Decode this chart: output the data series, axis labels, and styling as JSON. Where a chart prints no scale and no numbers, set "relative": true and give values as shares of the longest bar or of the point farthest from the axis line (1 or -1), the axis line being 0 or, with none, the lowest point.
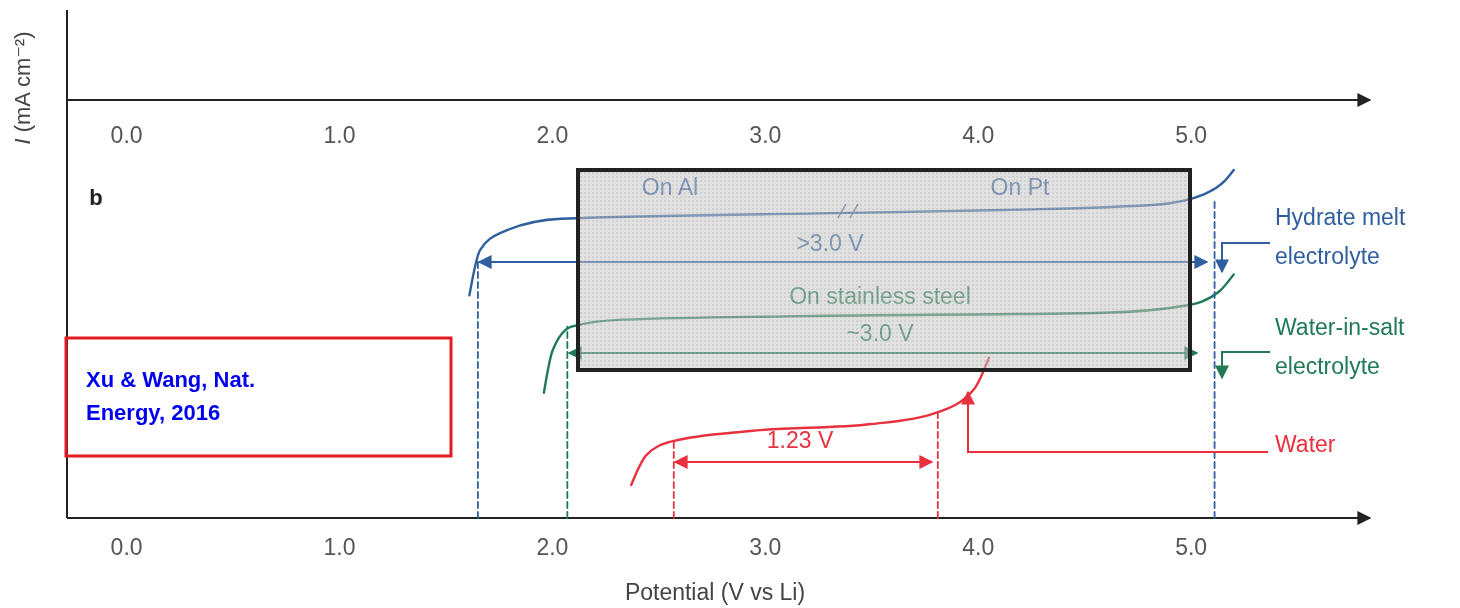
{
  "chart_data": {
    "type": "line",
    "relative": true,
    "ylabel": "I (mA cm⁻²)",
    "xlabel": "Potential (V vs Li)",
    "xlim": [
      -0.28,
      5.84
    ],
    "xticks": [
      {
        "value": 0,
        "label": "0.0"
      },
      {
        "value": 1,
        "label": "1.0"
      },
      {
        "value": 2,
        "label": "2.0"
      },
      {
        "value": 3,
        "label": "3.0"
      },
      {
        "value": 4,
        "label": "4.0"
      },
      {
        "value": 5,
        "label": "5.0"
      }
    ],
    "x2lim": [
      -0.28,
      5.84
    ],
    "x2ticks": [
      {
        "value": 0,
        "label": "0.0"
      },
      {
        "value": 1,
        "label": "1.0"
      },
      {
        "value": 2,
        "label": "2.0"
      },
      {
        "value": 3,
        "label": "3.0"
      },
      {
        "value": 4,
        "label": "4.0"
      },
      {
        "value": 5,
        "label": "5.0"
      }
    ],
    "series": [
      {
        "name": "Hydrate melt electrolyte",
        "color": "#2f5f9e",
        "x": [
          1.61,
          1.66,
          1.76,
          2.04,
          3.32,
          4.12,
          4.83,
          5.06,
          5.16,
          5.2
        ],
        "values": [
          0.64,
          0.77,
          0.82,
          0.86,
          0.876,
          0.885,
          0.9,
          0.93,
          0.97,
          1.0
        ]
      },
      {
        "name": "Water-in-salt electrolyte",
        "color": "#1f7a55",
        "x": [
          1.96,
          2.0,
          2.09,
          2.33,
          3.17,
          4.59,
          4.97,
          5.13,
          5.2
        ],
        "values": [
          0.36,
          0.48,
          0.55,
          0.57,
          0.58,
          0.59,
          0.61,
          0.65,
          0.7
        ]
      },
      {
        "name": "Water",
        "color": "#e8303f",
        "x": [
          2.37,
          2.44,
          2.56,
          2.93,
          3.5,
          3.79,
          3.98,
          4.05
        ],
        "values": [
          0.095,
          0.18,
          0.22,
          0.25,
          0.27,
          0.3,
          0.37,
          0.46
        ]
      },
      {
        "color": "#2f5f9e",
        "line_style": "dashed",
        "x": [
          1.65,
          1.65
        ],
        "values": [
          0,
          0.74
        ]
      },
      {
        "color": "#2f5f9e",
        "line_style": "dashed",
        "x": [
          5.11,
          5.11
        ],
        "values": [
          0,
          0.91
        ]
      },
      {
        "color": "#1f7a55",
        "line_style": "dashed",
        "x": [
          2.07,
          2.07
        ],
        "values": [
          0,
          0.55
        ]
      },
      {
        "color": "#e8303f",
        "line_style": "dashed",
        "x": [
          2.57,
          2.57
        ],
        "values": [
          0,
          0.22
        ]
      },
      {
        "color": "#e8303f",
        "line_style": "dashed",
        "x": [
          3.81,
          3.81
        ],
        "values": [
          0,
          0.3
        ]
      }
    ],
    "annotations": [
      "b",
      "On Al",
      "On Pt",
      ">3.0 V",
      "On stainless steel",
      "~3.0 V",
      "1.23 V",
      "Xu & Wang, Nat. Energy, 2016"
    ]
  }
}
